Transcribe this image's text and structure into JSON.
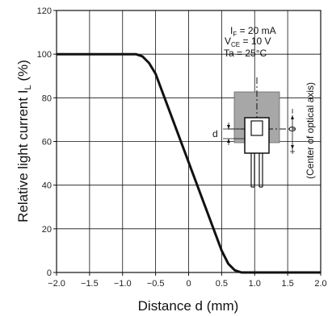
{
  "chart_data": {
    "type": "line",
    "xlabel": "Distance d (mm)",
    "ylabel": "Relative light current I",
    "ylabel_sub": "L",
    "ylabel_unit": " (%)",
    "xlim": [
      -2.0,
      2.0
    ],
    "ylim": [
      0,
      120
    ],
    "x_ticks": [
      "−2.0",
      "−1.5",
      "−1.0",
      "−0.5",
      "0",
      "0.5",
      "1.0",
      "1.5",
      "2.0"
    ],
    "y_ticks": [
      "0",
      "20",
      "40",
      "60",
      "80",
      "100",
      "120"
    ],
    "grid": true,
    "series": [
      {
        "x": [
          -2.0,
          -0.9,
          -0.8,
          -0.7,
          -0.6,
          -0.5,
          0.5,
          0.6,
          0.7,
          0.8,
          0.9,
          2.0
        ],
        "y": [
          100,
          100,
          100,
          99,
          96,
          91,
          10,
          4,
          1,
          0,
          0,
          0
        ]
      }
    ],
    "conditions": {
      "if_main": "I",
      "if_sub": "F",
      "if_val": " = 20 mA",
      "vce_main": "V",
      "vce_sub": "CE",
      "vce_val": " = 10 V",
      "ta": "Ta = 25°C"
    },
    "inset": {
      "d_label": "d",
      "zero_label": "0",
      "minus_label": "−",
      "plus_label": "+",
      "axis_note": "(Center of optical axis)"
    }
  }
}
